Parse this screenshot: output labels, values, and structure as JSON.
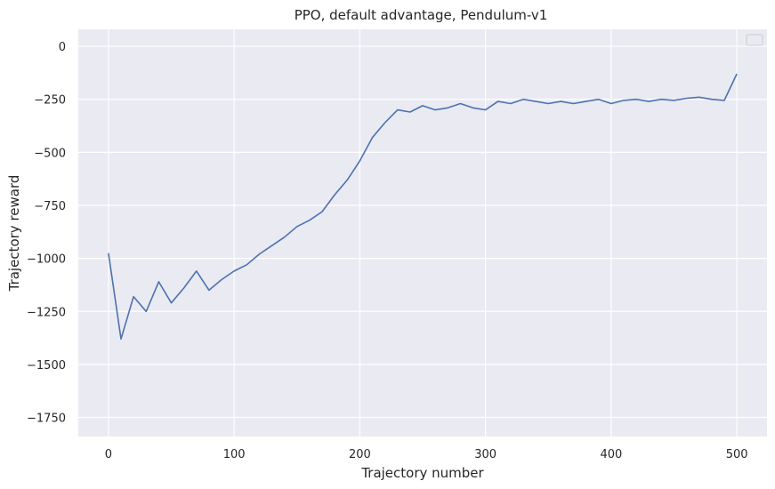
{
  "chart_data": {
    "type": "line",
    "title": "PPO, default advantage, Pendulum-v1",
    "xlabel": "Trajectory number",
    "ylabel": "Trajectory reward",
    "xlim": [
      -24,
      524
    ],
    "ylim": [
      -1840,
      80
    ],
    "xticks": [
      0,
      100,
      200,
      300,
      400,
      500
    ],
    "xtick_labels": [
      "0",
      "100",
      "200",
      "300",
      "400",
      "500"
    ],
    "yticks": [
      0,
      -250,
      -500,
      -750,
      -1000,
      -1250,
      -1500,
      -1750
    ],
    "ytick_labels": [
      "0",
      "−250",
      "−500",
      "−750",
      "−1000",
      "−1250",
      "−1500",
      "−1750"
    ],
    "grid": true,
    "legend": {
      "placement": "top-right",
      "entries": []
    },
    "colors": {
      "line": "#4c72b0",
      "background": "#eaeaf2",
      "grid": "#ffffff"
    },
    "series": [
      {
        "x": [
          0,
          10,
          20,
          30,
          40,
          50,
          60,
          70,
          80,
          90,
          100,
          110,
          120,
          130,
          140,
          150,
          160,
          170,
          180,
          190,
          200,
          210,
          220,
          230,
          240,
          250,
          260,
          270,
          280,
          290,
          300,
          310,
          320,
          330,
          340,
          350,
          360,
          370,
          380,
          390,
          400,
          410,
          420,
          430,
          440,
          450,
          460,
          470,
          480,
          490,
          500
        ],
        "y": [
          -975,
          -1380,
          -1180,
          -1250,
          -1110,
          -1210,
          -1140,
          -1060,
          -1150,
          -1100,
          -1060,
          -1030,
          -980,
          -940,
          -900,
          -850,
          -820,
          -780,
          -700,
          -630,
          -540,
          -430,
          -360,
          -300,
          -310,
          -280,
          -300,
          -290,
          -270,
          -290,
          -300,
          -260,
          -270,
          -250,
          -260,
          -270,
          -260,
          -270,
          -260,
          -250,
          -270,
          -255,
          -250,
          -260,
          -250,
          -255,
          -245,
          -240,
          -250,
          -255,
          -130
        ]
      }
    ]
  }
}
